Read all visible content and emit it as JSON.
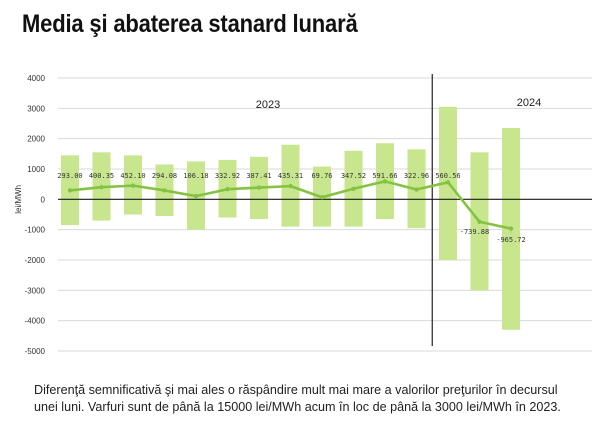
{
  "title": "Media şi abaterea stanard lunară",
  "caption": "Diferenţă semnificativă şi mai ales o răspândire mult mai mare a valorilor preţurilor în decursul unei luni. Varfuri sunt de până la 15000 lei/MWh acum în loc de până la 3000 lei/MWh în 2023.",
  "colors": {
    "band": "#c8e68e",
    "line": "#84c341",
    "grid": "#d9d9d9",
    "text": "#333333"
  },
  "chart_data": {
    "type": "line",
    "ylabel": "lei/MWh",
    "ylim": [
      -5000,
      4000
    ],
    "yticks": [
      4000,
      3000,
      2000,
      1000,
      0,
      -1000,
      -2000,
      -3000,
      -4000,
      -5000
    ],
    "year_labels": [
      "2023",
      "2024"
    ],
    "series": [
      {
        "values": [
          293.0,
          400.35,
          452.1,
          294.08,
          106.18,
          332.92,
          387.41,
          435.31,
          69.76,
          347.52,
          591.66,
          322.96,
          560.56,
          -739.88,
          -965.72
        ],
        "labels": [
          "293.00",
          "400.35",
          "452.10",
          "294.08",
          "106.18",
          "332.92",
          "387.41",
          "435.31",
          "69.76",
          "347.52",
          "591.66",
          "322.96",
          "560.56",
          "-739.88",
          "-965.72"
        ]
      }
    ],
    "bands": [
      [
        -850,
        1450
      ],
      [
        -700,
        1550
      ],
      [
        -500,
        1450
      ],
      [
        -550,
        1150
      ],
      [
        -1000,
        1250
      ],
      [
        -600,
        1300
      ],
      [
        -650,
        1400
      ],
      [
        -900,
        1800
      ],
      [
        -900,
        1080
      ],
      [
        -900,
        1600
      ],
      [
        -650,
        1850
      ],
      [
        -950,
        1650
      ],
      [
        -2000,
        3050
      ],
      [
        -3000,
        1550
      ],
      [
        -4300,
        2350
      ]
    ]
  }
}
